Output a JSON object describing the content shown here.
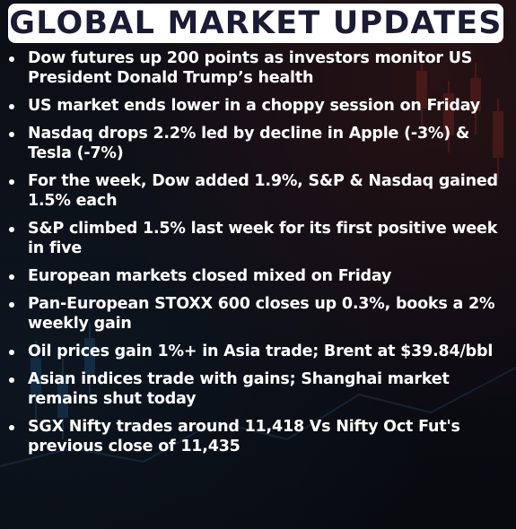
{
  "header": {
    "title": "GLOBAL MARKET UPDATES"
  },
  "bullets": [
    "Dow futures up 200 points as investors monitor US President Donald Trump’s health",
    "US market ends lower in a choppy session on Friday",
    "Nasdaq drops 2.2% led by decline in Apple (-3%) & Tesla (-7%)",
    "For the week, Dow added 1.9%, S&P & Nasdaq gained 1.5% each",
    "S&P climbed 1.5% last week for its first positive week in five",
    "European markets closed mixed on Friday",
    "Pan-European STOXX 600 closes up 0.3%, books a 2% weekly gain",
    "Oil prices gain 1%+ in Asia trade; Brent at $39.84/bbl",
    "Asian indices trade with gains; Shanghai market remains shut today",
    "SGX Nifty trades around 11,418 Vs Nifty Oct Fut's previous close of 11,435"
  ],
  "colors": {
    "header_bg": "#ffffff",
    "header_text": "#1b1b35",
    "body_text": "#ffffff",
    "background": "#0b0d14"
  }
}
